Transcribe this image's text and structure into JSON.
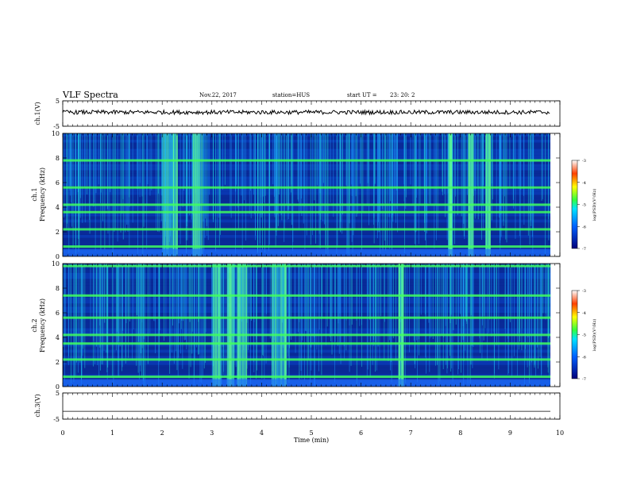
{
  "chart_data": {
    "type": "heatmap",
    "title": "VLF Spectra",
    "date": "Nov.22, 2017",
    "station": "station=HUS",
    "start_label": "start  UT  =",
    "start_time": "23: 20: 2",
    "xlabel": "Time  (min)",
    "xlim": [
      0,
      10
    ],
    "xticks": [
      "0",
      "1",
      "2",
      "3",
      "4",
      "5",
      "6",
      "7",
      "8",
      "9",
      "10"
    ],
    "panels": [
      {
        "id": "ch1v",
        "ylabel": "ch.1(V)",
        "ylim": [
          -5,
          5
        ],
        "yticks": [
          "5",
          "-5"
        ],
        "trace": "noisy",
        "level": 0.5
      },
      {
        "id": "ch1",
        "ylabel": [
          "ch.1",
          "Frequency  (kHz)"
        ],
        "ylim": [
          0,
          10
        ],
        "yticks": [
          "0",
          "2",
          "4",
          "6",
          "8",
          "10"
        ],
        "strong_bands_khz": [
          0.8,
          2.2,
          3.6,
          4.2,
          5.6,
          7.8
        ],
        "bursts_min": [
          [
            2.0,
            2.3
          ],
          [
            2.6,
            2.8
          ],
          [
            7.75,
            7.85
          ],
          [
            8.15,
            8.25
          ],
          [
            8.5,
            8.6
          ]
        ],
        "colorbar": {
          "label": "log(PSD)(V²/Hz)",
          "ticks": [
            "-3",
            "-4",
            "-5",
            "-6",
            "-7"
          ],
          "range": [
            -7,
            -3
          ]
        }
      },
      {
        "id": "ch2",
        "ylabel": [
          "ch.2",
          "Frequency  (kHz)"
        ],
        "ylim": [
          0,
          10
        ],
        "yticks": [
          "0",
          "2",
          "4",
          "6",
          "8",
          "10"
        ],
        "strong_bands_khz": [
          0.8,
          2.2,
          3.5,
          4.2,
          5.6,
          7.4,
          9.8
        ],
        "bursts_min": [
          [
            3.0,
            3.2
          ],
          [
            3.3,
            3.45
          ],
          [
            3.5,
            3.7
          ],
          [
            4.2,
            4.5
          ],
          [
            6.75,
            6.85
          ]
        ],
        "colorbar": {
          "label": "log(PSD)(V²/Hz)",
          "ticks": [
            "-3",
            "-4",
            "-5",
            "-6",
            "-7"
          ],
          "range": [
            -7,
            -3
          ]
        }
      },
      {
        "id": "ch3v",
        "ylabel": "ch.3(V)",
        "ylim": [
          -5,
          5
        ],
        "yticks": [
          "5",
          "-5"
        ],
        "trace": "flat",
        "level": -2
      }
    ]
  }
}
